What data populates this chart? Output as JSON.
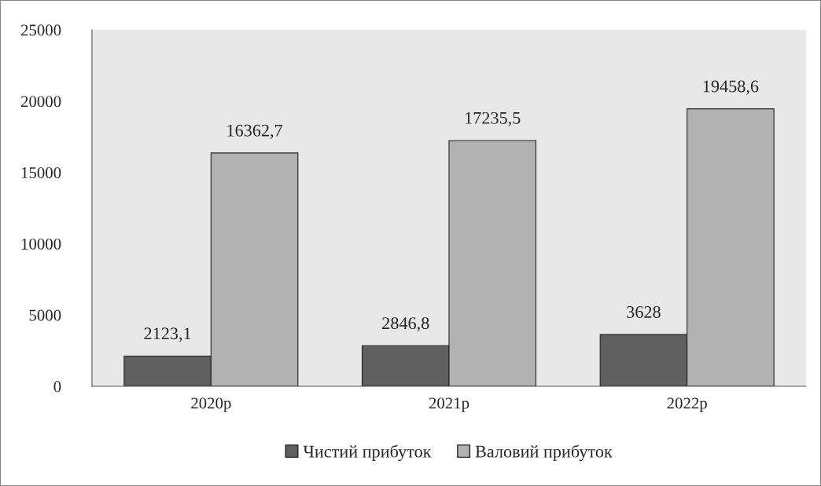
{
  "chart_data": {
    "type": "bar",
    "categories": [
      "2020р",
      "2021р",
      "2022р"
    ],
    "series": [
      {
        "name": "Чистий прибуток",
        "color": "#5f5f5f",
        "values": [
          2123.1,
          2846.8,
          3628
        ],
        "value_labels": [
          "2123,1",
          "2846,8",
          "3628"
        ]
      },
      {
        "name": "Валовий прибуток",
        "color": "#b2b2b2",
        "values": [
          16362.7,
          17235.5,
          19458.6
        ],
        "value_labels": [
          "16362,7",
          "17235,5",
          "19458,6"
        ]
      }
    ],
    "ylim": [
      0,
      25000
    ],
    "yticks": [
      0,
      5000,
      10000,
      15000,
      20000,
      25000
    ],
    "grid": false,
    "legend": "bottom"
  }
}
